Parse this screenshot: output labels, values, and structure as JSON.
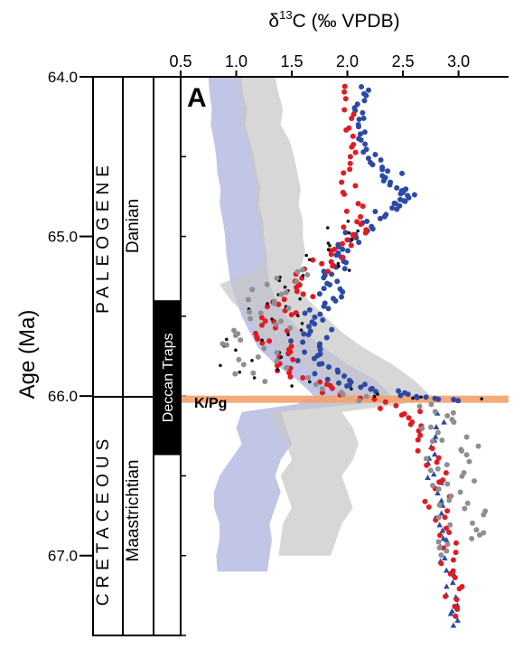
{
  "chart_data": {
    "type": "scatter",
    "panel_label": "A",
    "x_axis": {
      "label_base": "δ",
      "label_sup": "13",
      "label_rest": "C (‰ VPDB)",
      "range": [
        0.5,
        3.45
      ],
      "ticks": [
        "0.5",
        "1.0",
        "1.5",
        "2.0",
        "2.5",
        "3.0"
      ],
      "tick_values": [
        0.5,
        1.0,
        1.5,
        2.0,
        2.5,
        3.0
      ],
      "position": "top"
    },
    "y_axis": {
      "label": "Age (Ma)",
      "range": [
        64.0,
        67.5
      ],
      "inverted": true,
      "ticks": [
        "64.0",
        "65.0",
        "66.0",
        "67.0"
      ],
      "tick_values": [
        64.0,
        65.0,
        66.0,
        67.0
      ]
    },
    "stratigraphy": {
      "era_upper": "PALEOGENE",
      "era_lower": "CRETACEOUS",
      "stage_upper": "Danian",
      "stage_lower": "Maastrichtian",
      "volcanism": "Deccan Traps",
      "volcanism_range": [
        65.4,
        66.37
      ],
      "boundary_age": 66.02
    },
    "boundary_label": "K/Pg",
    "colors": {
      "blue": "#2c4aa4",
      "red": "#e11b22",
      "black": "#111111",
      "gray": "#8f8f8f",
      "blue_band": "#a7addb",
      "gray_band": "#c6c6c6",
      "boundary": "#f2a26c"
    },
    "bands": [
      {
        "name": "benthic-envelope",
        "color_key": "blue_band",
        "ages": [
          64.0,
          64.1,
          64.2,
          64.3,
          64.4,
          64.5,
          64.6,
          64.7,
          64.8,
          64.9,
          65.0,
          65.1,
          65.2,
          65.3,
          65.4,
          65.5,
          65.6,
          65.7,
          65.8,
          65.9,
          66.0,
          66.05,
          66.1,
          66.2,
          66.3,
          66.4,
          66.5,
          66.6,
          66.7,
          66.8,
          66.9,
          67.0,
          67.1
        ],
        "lo": [
          0.75,
          0.76,
          0.78,
          0.77,
          0.8,
          0.82,
          0.83,
          0.86,
          0.85,
          0.88,
          0.9,
          0.91,
          0.93,
          0.95,
          1.0,
          1.05,
          1.12,
          1.2,
          1.35,
          1.55,
          1.7,
          1.55,
          1.05,
          1.0,
          1.05,
          0.95,
          0.85,
          0.8,
          0.8,
          0.85,
          0.85,
          0.82,
          0.83
        ],
        "hi": [
          1.05,
          1.06,
          1.1,
          1.08,
          1.12,
          1.16,
          1.18,
          1.22,
          1.2,
          1.24,
          1.25,
          1.27,
          1.28,
          1.3,
          1.36,
          1.45,
          1.6,
          1.8,
          2.0,
          2.25,
          2.4,
          2.1,
          1.4,
          1.45,
          1.5,
          1.4,
          1.35,
          1.4,
          1.35,
          1.3,
          1.32,
          1.3,
          1.28
        ]
      },
      {
        "name": "planktic-envelope",
        "color_key": "gray_band",
        "ages": [
          64.0,
          64.1,
          64.2,
          64.3,
          64.4,
          64.5,
          64.6,
          64.7,
          64.8,
          64.9,
          65.0,
          65.1,
          65.2,
          65.3,
          65.4,
          65.5,
          65.6,
          65.7,
          65.8,
          65.9,
          66.0,
          66.05,
          66.1,
          66.2,
          66.3,
          66.4,
          66.5,
          66.6,
          66.7,
          66.8,
          66.9,
          67.0
        ],
        "lo": [
          1.0,
          1.02,
          1.06,
          1.05,
          1.1,
          1.12,
          1.15,
          1.18,
          1.16,
          1.2,
          1.22,
          1.25,
          1.22,
          0.85,
          0.95,
          1.1,
          1.2,
          1.35,
          1.55,
          1.8,
          2.0,
          1.8,
          1.3,
          1.35,
          1.45,
          1.5,
          1.4,
          1.45,
          1.5,
          1.42,
          1.4,
          1.38
        ],
        "hi": [
          1.35,
          1.38,
          1.42,
          1.4,
          1.48,
          1.52,
          1.55,
          1.58,
          1.56,
          1.6,
          1.6,
          1.62,
          1.58,
          1.55,
          1.65,
          1.8,
          1.95,
          2.15,
          2.4,
          2.6,
          2.75,
          2.5,
          1.95,
          2.05,
          2.1,
          2.05,
          1.95,
          2.0,
          2.05,
          1.95,
          1.9,
          1.85
        ]
      }
    ],
    "series": [
      {
        "color_key": "blue",
        "marker": "circle",
        "ages": [
          64.05,
          64.2,
          64.35,
          64.5,
          64.6,
          64.7,
          64.75,
          64.8,
          64.9,
          65.0,
          65.1,
          65.2,
          65.3,
          65.4,
          65.5,
          65.6,
          65.7,
          65.8,
          65.9,
          65.95,
          66.0,
          66.03
        ],
        "d13c": [
          2.15,
          2.1,
          2.12,
          2.2,
          2.4,
          2.45,
          2.55,
          2.4,
          2.2,
          2.05,
          1.95,
          1.9,
          1.85,
          1.8,
          1.75,
          1.7,
          1.6,
          1.7,
          1.9,
          2.2,
          2.6,
          2.95
        ],
        "spread": [
          0.05,
          0.06,
          0.05,
          0.08,
          0.1,
          0.1,
          0.08,
          0.12,
          0.12,
          0.1,
          0.12,
          0.1,
          0.12,
          0.15,
          0.15,
          0.18,
          0.15,
          0.15,
          0.15,
          0.15,
          0.12,
          0.1
        ],
        "per_step": 7
      },
      {
        "color_key": "blue",
        "marker": "triangle",
        "ages": [
          66.1,
          66.3,
          66.5,
          66.7,
          66.9,
          67.1,
          67.3,
          67.45
        ],
        "d13c": [
          2.85,
          2.75,
          2.78,
          2.82,
          2.87,
          2.9,
          2.95,
          3.0
        ],
        "spread": [
          0.06,
          0.06,
          0.06,
          0.06,
          0.06,
          0.06,
          0.05,
          0.05
        ],
        "per_step": 5
      },
      {
        "color_key": "red",
        "marker": "circle",
        "ages": [
          64.05,
          64.3,
          64.5,
          64.7,
          64.9,
          65.0,
          65.1,
          65.2,
          65.3,
          65.4,
          65.5,
          65.6,
          65.7,
          65.8,
          65.9,
          66.0,
          66.1,
          66.2,
          66.4,
          66.6,
          66.8,
          67.0,
          67.2,
          67.4
        ],
        "d13c": [
          2.0,
          2.02,
          2.05,
          2.0,
          2.1,
          2.05,
          1.85,
          1.75,
          1.6,
          1.5,
          1.4,
          1.35,
          1.35,
          1.45,
          1.6,
          2.0,
          2.55,
          2.65,
          2.75,
          2.8,
          2.85,
          2.9,
          2.95,
          3.0
        ],
        "spread": [
          0.05,
          0.05,
          0.05,
          0.08,
          0.1,
          0.15,
          0.15,
          0.15,
          0.18,
          0.2,
          0.18,
          0.18,
          0.15,
          0.15,
          0.15,
          0.2,
          0.12,
          0.1,
          0.12,
          0.12,
          0.12,
          0.1,
          0.1,
          0.08
        ],
        "per_step": 6
      },
      {
        "color_key": "black",
        "marker": "circle",
        "ages": [
          64.9,
          65.0,
          65.1,
          65.2,
          65.3,
          65.4,
          65.5,
          65.6,
          65.7,
          65.8,
          65.9,
          66.0,
          66.02
        ],
        "d13c": [
          2.0,
          1.95,
          1.85,
          1.75,
          1.6,
          1.5,
          1.4,
          1.3,
          1.2,
          1.1,
          1.4,
          2.4,
          3.0
        ],
        "spread": [
          0.15,
          0.2,
          0.25,
          0.3,
          0.35,
          0.35,
          0.35,
          0.35,
          0.35,
          0.4,
          0.4,
          0.45,
          0.3
        ],
        "per_step": 4
      },
      {
        "color_key": "gray",
        "marker": "circle",
        "ages": [
          65.2,
          65.3,
          65.4,
          65.5,
          65.6,
          65.7,
          65.8,
          65.9,
          66.0,
          66.1,
          66.2,
          66.3,
          66.4,
          66.5,
          66.6,
          66.7,
          66.8,
          66.9,
          67.0
        ],
        "d13c": [
          1.6,
          1.35,
          1.3,
          1.3,
          1.25,
          1.2,
          1.2,
          1.4,
          2.2,
          2.85,
          2.9,
          2.95,
          2.95,
          2.9,
          3.0,
          3.05,
          3.05,
          3.0,
          2.95
        ],
        "spread": [
          0.15,
          0.2,
          0.25,
          0.25,
          0.3,
          0.35,
          0.35,
          0.35,
          0.35,
          0.2,
          0.25,
          0.25,
          0.25,
          0.25,
          0.25,
          0.25,
          0.25,
          0.2,
          0.15
        ],
        "per_step": 5
      }
    ]
  }
}
